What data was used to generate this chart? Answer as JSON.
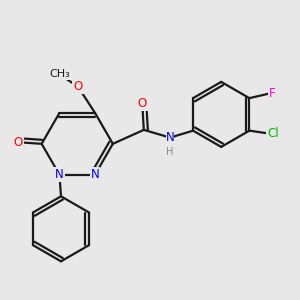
{
  "bg_color": "#e8e8e8",
  "bond_color": "#1a1a1a",
  "atom_colors": {
    "O": "#ff0000",
    "N": "#0000ff",
    "Cl": "#00bb00",
    "F": "#ee00ee",
    "H": "#888888",
    "C": "#1a1a1a"
  },
  "font_size": 8.5,
  "fig_size": [
    3.0,
    3.0
  ],
  "dpi": 100
}
